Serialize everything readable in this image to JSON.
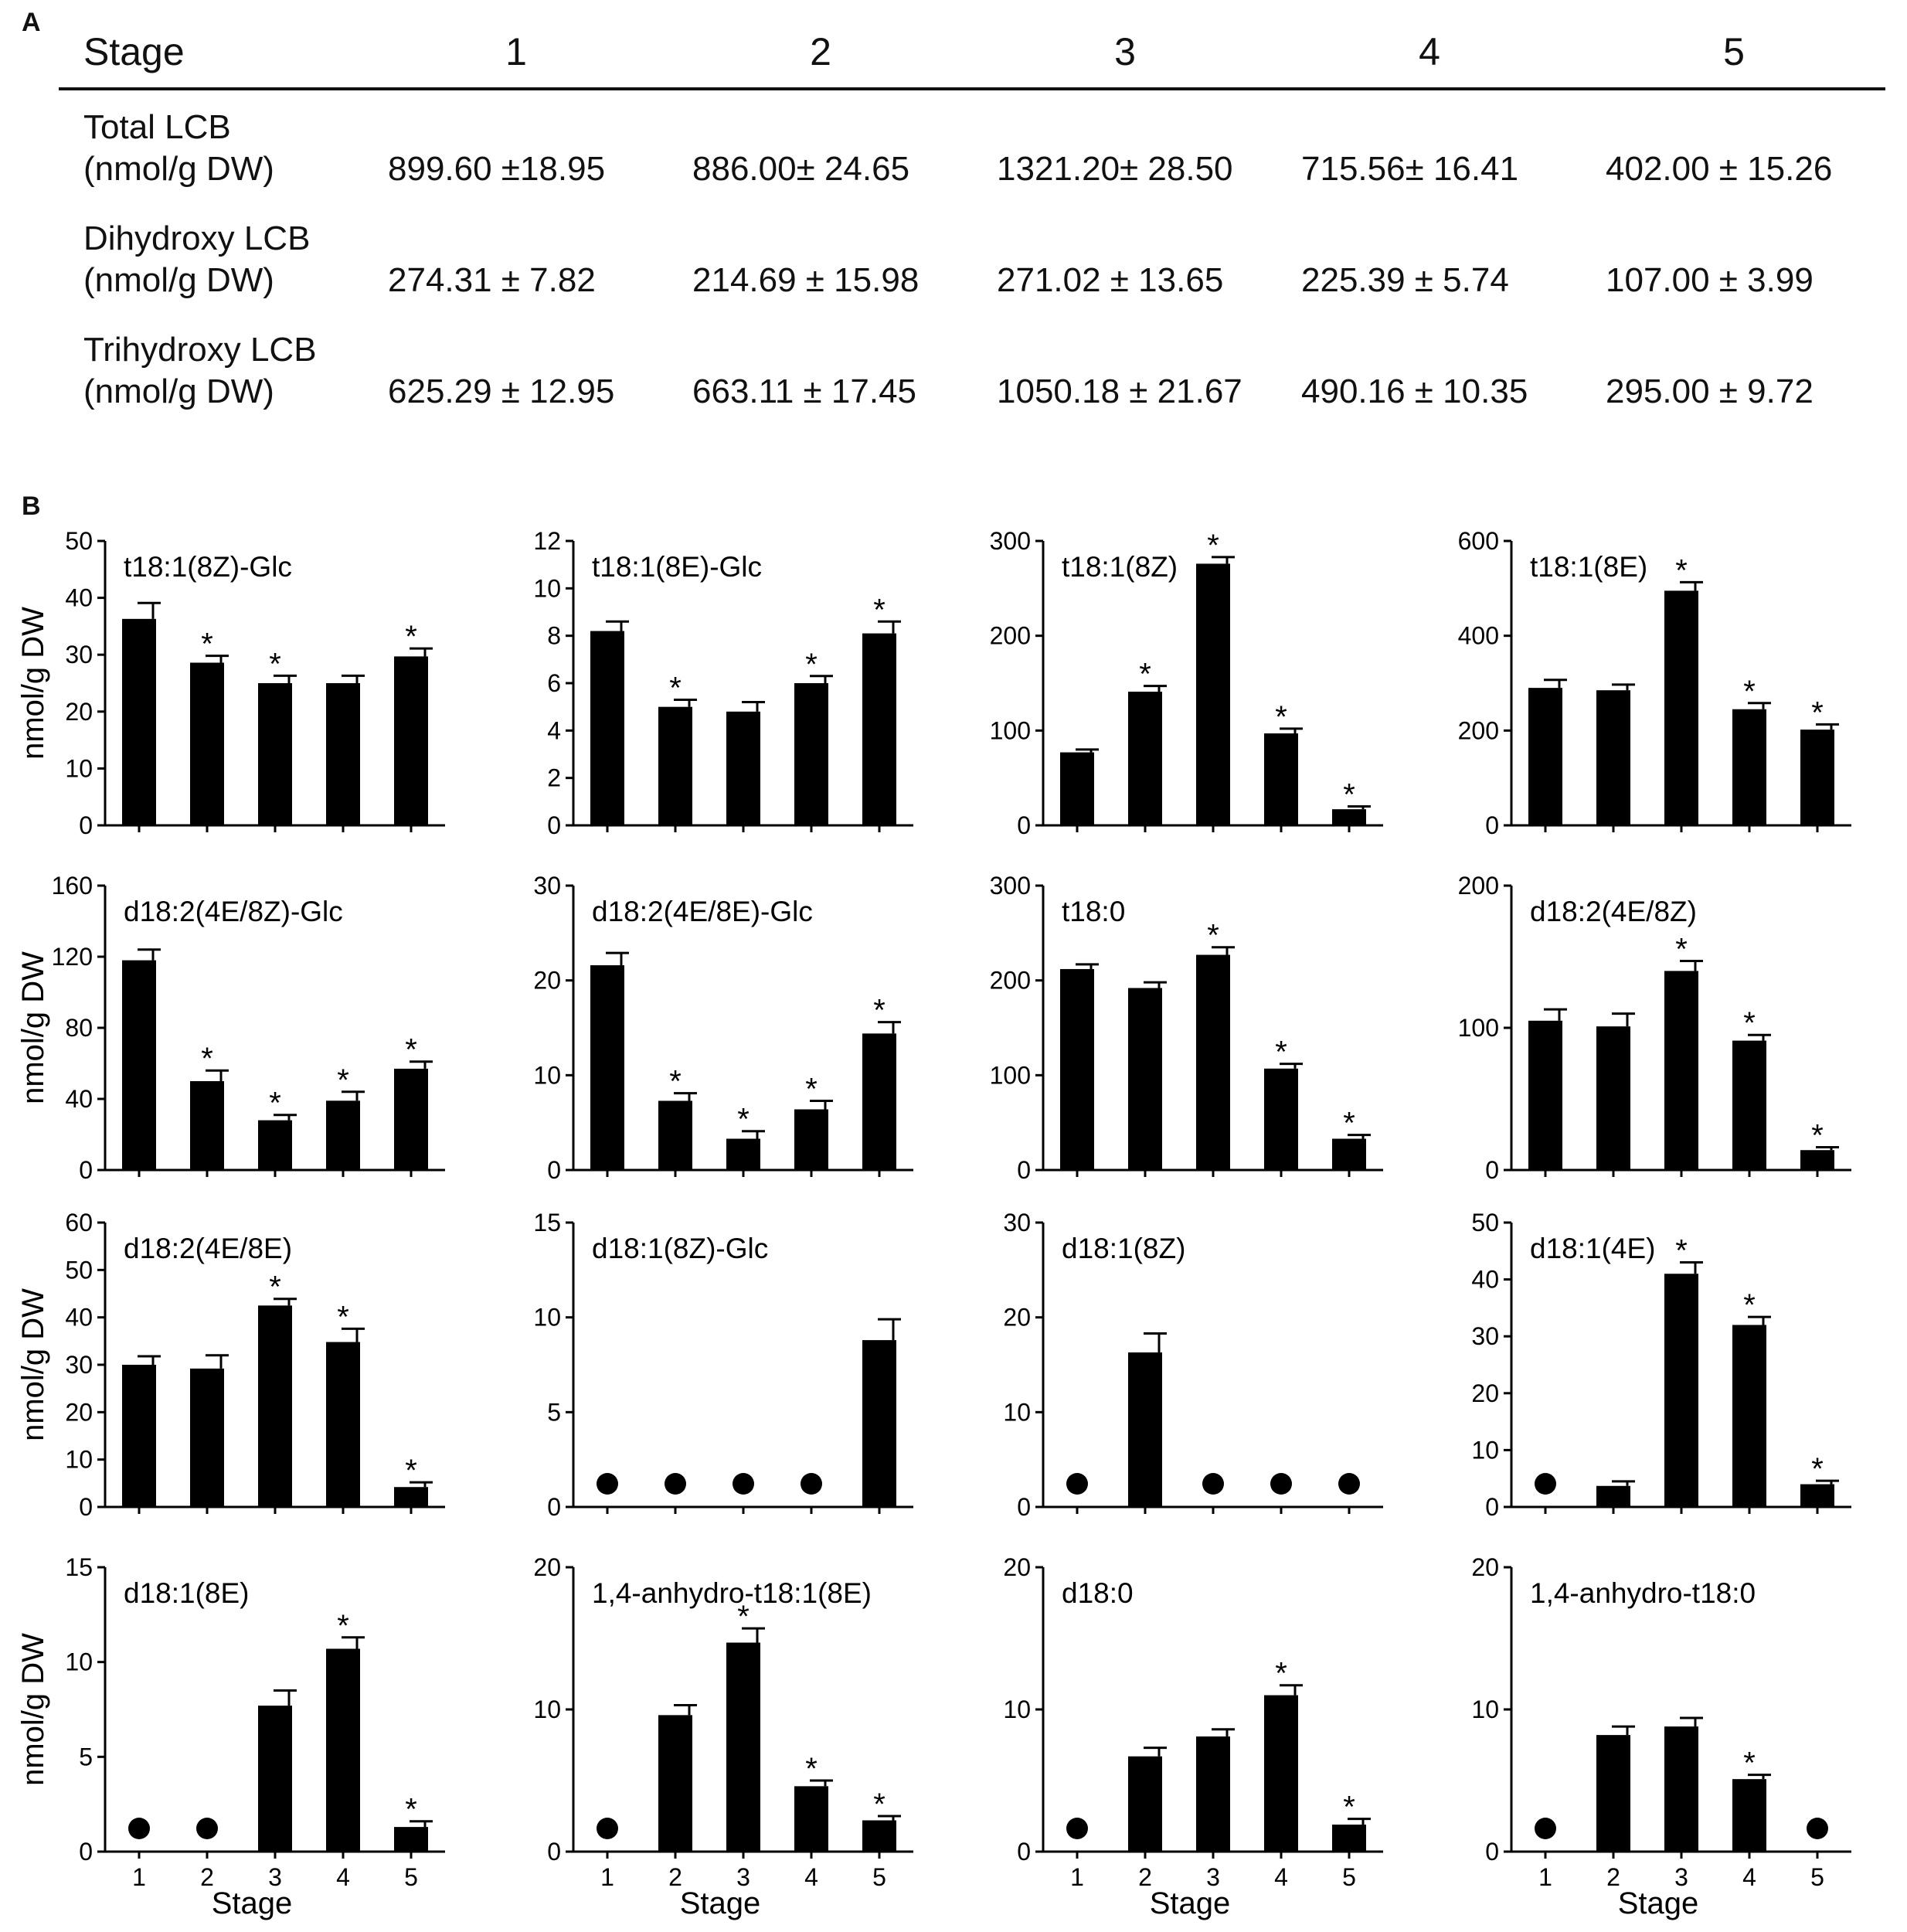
{
  "panel_a": {
    "letter": "A",
    "header": [
      "Stage",
      "1",
      "2",
      "3",
      "4",
      "5"
    ],
    "rows": [
      {
        "label": [
          "Total LCB",
          "(nmol/g DW)"
        ],
        "cells": [
          "899.60 ±18.95",
          "886.00± 24.65",
          "1321.20± 28.50",
          "715.56± 16.41",
          "402.00 ± 15.26"
        ]
      },
      {
        "label": [
          "Dihydroxy LCB",
          "(nmol/g DW)"
        ],
        "cells": [
          "274.31 ± 7.82",
          "214.69 ±  15.98",
          "271.02 ± 13.65",
          "225.39 ± 5.74",
          "107.00 ± 3.99"
        ]
      },
      {
        "label": [
          "Trihydroxy LCB",
          "(nmol/g DW)"
        ],
        "cells": [
          "625.29 ± 12.95",
          "663.11 ± 17.45",
          "1050.18 ± 21.67",
          "490.16 ± 10.35",
          "295.00 ± 9.72"
        ]
      }
    ]
  },
  "panel_b": {
    "letter": "B",
    "ylabel": "nmol/g DW",
    "xlabel": "Stage",
    "categories": [
      "1",
      "2",
      "3",
      "4",
      "5"
    ],
    "significance_mark": "*"
  },
  "colors": {
    "bar": "#000000",
    "axis": "#000000",
    "background": "#ffffff"
  },
  "chart_data": [
    {
      "type": "bar",
      "title": "t18:1(8Z)-Glc",
      "ylim": [
        0,
        50
      ],
      "yticks": [
        0,
        10,
        20,
        30,
        40,
        50
      ],
      "values": [
        36.3,
        28.6,
        25.0,
        25.0,
        29.7
      ],
      "errors": [
        2.8,
        1.2,
        1.3,
        1.3,
        1.4
      ],
      "significant": [
        false,
        true,
        true,
        false,
        true
      ],
      "not_detected": [
        false,
        false,
        false,
        false,
        false
      ]
    },
    {
      "type": "bar",
      "title": "t18:1(8E)-Glc",
      "ylim": [
        0,
        12
      ],
      "yticks": [
        0,
        2,
        4,
        6,
        8,
        10,
        12
      ],
      "values": [
        8.2,
        5.0,
        4.8,
        6.0,
        8.1
      ],
      "errors": [
        0.4,
        0.3,
        0.4,
        0.3,
        0.5
      ],
      "significant": [
        false,
        true,
        false,
        true,
        true
      ],
      "not_detected": [
        false,
        false,
        false,
        false,
        false
      ]
    },
    {
      "type": "bar",
      "title": "t18:1(8Z)",
      "ylim": [
        0,
        300
      ],
      "yticks": [
        0,
        100,
        200,
        300
      ],
      "values": [
        77,
        141,
        276,
        97,
        17
      ],
      "errors": [
        3,
        6,
        7,
        5,
        3
      ],
      "significant": [
        false,
        true,
        true,
        true,
        true
      ],
      "not_detected": [
        false,
        false,
        false,
        false,
        false
      ]
    },
    {
      "type": "bar",
      "title": "t18:1(8E)",
      "ylim": [
        0,
        600
      ],
      "yticks": [
        0,
        200,
        400,
        600
      ],
      "values": [
        290,
        285,
        495,
        245,
        202
      ],
      "errors": [
        17,
        12,
        18,
        13,
        11
      ],
      "significant": [
        false,
        false,
        true,
        true,
        true
      ],
      "not_detected": [
        false,
        false,
        false,
        false,
        false
      ]
    },
    {
      "type": "bar",
      "title": "d18:2(4E/8Z)-Glc",
      "ylim": [
        0,
        160
      ],
      "yticks": [
        0,
        40,
        80,
        120,
        160
      ],
      "values": [
        118,
        50,
        28,
        39,
        57
      ],
      "errors": [
        6,
        6,
        3,
        5,
        4
      ],
      "significant": [
        false,
        true,
        true,
        true,
        true
      ],
      "not_detected": [
        false,
        false,
        false,
        false,
        false
      ]
    },
    {
      "type": "bar",
      "title": "d18:2(4E/8E)-Glc",
      "ylim": [
        0,
        30
      ],
      "yticks": [
        0,
        10,
        20,
        30
      ],
      "values": [
        21.6,
        7.3,
        3.3,
        6.4,
        14.4
      ],
      "errors": [
        1.3,
        0.8,
        0.8,
        0.9,
        1.2
      ],
      "significant": [
        false,
        true,
        true,
        true,
        true
      ],
      "not_detected": [
        false,
        false,
        false,
        false,
        false
      ]
    },
    {
      "type": "bar",
      "title": "t18:0",
      "ylim": [
        0,
        300
      ],
      "yticks": [
        0,
        100,
        200,
        300
      ],
      "values": [
        212,
        192,
        227,
        107,
        33
      ],
      "errors": [
        5,
        6,
        8,
        5,
        4
      ],
      "significant": [
        false,
        false,
        true,
        true,
        true
      ],
      "not_detected": [
        false,
        false,
        false,
        false,
        false
      ]
    },
    {
      "type": "bar",
      "title": "d18:2(4E/8Z)",
      "ylim": [
        0,
        200
      ],
      "yticks": [
        0,
        100,
        200
      ],
      "values": [
        105,
        101,
        140,
        91,
        14
      ],
      "errors": [
        8,
        9,
        7,
        4,
        2
      ],
      "significant": [
        false,
        false,
        true,
        true,
        true
      ],
      "not_detected": [
        false,
        false,
        false,
        false,
        false
      ]
    },
    {
      "type": "bar",
      "title": "d18:2(4E/8E)",
      "ylim": [
        0,
        60
      ],
      "yticks": [
        0,
        10,
        20,
        30,
        40,
        50,
        60
      ],
      "values": [
        30,
        29.2,
        42.5,
        34.8,
        4.2
      ],
      "errors": [
        1.8,
        2.8,
        1.4,
        2.8,
        1.0
      ],
      "significant": [
        false,
        false,
        true,
        true,
        true
      ],
      "not_detected": [
        false,
        false,
        false,
        false,
        false
      ]
    },
    {
      "type": "bar",
      "title": "d18:1(8Z)-Glc",
      "ylim": [
        0,
        15
      ],
      "yticks": [
        0,
        5,
        10,
        15
      ],
      "values": [
        0,
        0,
        0,
        0,
        8.8
      ],
      "errors": [
        0,
        0,
        0,
        0,
        1.1
      ],
      "significant": [
        false,
        false,
        false,
        false,
        false
      ],
      "not_detected": [
        true,
        true,
        true,
        true,
        false
      ]
    },
    {
      "type": "bar",
      "title": "d18:1(8Z)",
      "ylim": [
        0,
        30
      ],
      "yticks": [
        0,
        10,
        20,
        30
      ],
      "values": [
        0,
        16.3,
        0,
        0,
        0
      ],
      "errors": [
        0,
        2.0,
        0,
        0,
        0
      ],
      "significant": [
        false,
        false,
        false,
        false,
        false
      ],
      "not_detected": [
        true,
        false,
        true,
        true,
        true
      ]
    },
    {
      "type": "bar",
      "title": "d18:1(4E)",
      "ylim": [
        0,
        50
      ],
      "yticks": [
        0,
        10,
        20,
        30,
        40,
        50
      ],
      "values": [
        0,
        3.7,
        41.0,
        32.0,
        4.0
      ],
      "errors": [
        0,
        0.8,
        2.0,
        1.4,
        0.6
      ],
      "significant": [
        false,
        false,
        true,
        true,
        true
      ],
      "not_detected": [
        true,
        false,
        false,
        false,
        false
      ]
    },
    {
      "type": "bar",
      "title": "d18:1(8E)",
      "ylim": [
        0,
        15
      ],
      "yticks": [
        0,
        5,
        10,
        15
      ],
      "values": [
        0,
        0,
        7.7,
        10.7,
        1.3
      ],
      "errors": [
        0,
        0,
        0.8,
        0.6,
        0.3
      ],
      "significant": [
        false,
        false,
        false,
        true,
        true
      ],
      "not_detected": [
        true,
        true,
        false,
        false,
        false
      ]
    },
    {
      "type": "bar",
      "title": "1,4-anhydro-t18:1(8E)",
      "ylim": [
        0,
        20
      ],
      "yticks": [
        0,
        10,
        20
      ],
      "values": [
        0,
        9.6,
        14.7,
        4.6,
        2.2
      ],
      "errors": [
        0,
        0.7,
        1.0,
        0.4,
        0.3
      ],
      "significant": [
        false,
        false,
        true,
        true,
        true
      ],
      "not_detected": [
        true,
        false,
        false,
        false,
        false
      ]
    },
    {
      "type": "bar",
      "title": "d18:0",
      "ylim": [
        0,
        20
      ],
      "yticks": [
        0,
        10,
        20
      ],
      "values": [
        0,
        6.7,
        8.1,
        11.0,
        1.9
      ],
      "errors": [
        0,
        0.6,
        0.5,
        0.7,
        0.4
      ],
      "significant": [
        false,
        false,
        false,
        true,
        true
      ],
      "not_detected": [
        true,
        false,
        false,
        false,
        false
      ]
    },
    {
      "type": "bar",
      "title": "1,4-anhydro-t18:0",
      "ylim": [
        0,
        20
      ],
      "yticks": [
        0,
        10,
        20
      ],
      "values": [
        0,
        8.2,
        8.8,
        5.1,
        0
      ],
      "errors": [
        0,
        0.6,
        0.6,
        0.3,
        0
      ],
      "significant": [
        false,
        false,
        false,
        true,
        false
      ],
      "not_detected": [
        true,
        false,
        false,
        false,
        true
      ]
    }
  ]
}
